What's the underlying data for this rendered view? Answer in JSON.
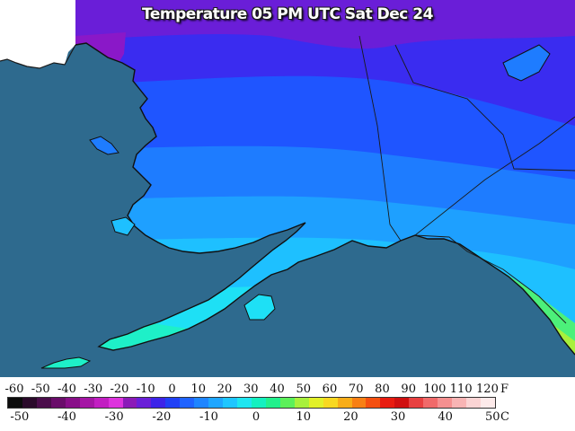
{
  "title": "Temperature 05 PM UTC Sat Dec 24",
  "legend": {
    "fahrenheit_unit": "F",
    "celsius_unit": "C",
    "fahrenheit_ticks": [
      "-60",
      "-50",
      "-40",
      "-30",
      "-20",
      "-10",
      "0",
      "10",
      "20",
      "30",
      "40",
      "50",
      "60",
      "70",
      "80",
      "90",
      "100",
      "110",
      "120"
    ],
    "celsius_ticks": [
      "-50",
      "-40",
      "-30",
      "-20",
      "-10",
      "0",
      "10",
      "20",
      "30",
      "40",
      "50"
    ],
    "colors": [
      "#0c0c0c",
      "#2a0a2a",
      "#4b0d4b",
      "#6a0d6a",
      "#880f88",
      "#a516a5",
      "#c21fc2",
      "#dd33dd",
      "#8b1ab8",
      "#6a1fd8",
      "#3d24e8",
      "#2040f5",
      "#1f63ff",
      "#1e85ff",
      "#1ea6ff",
      "#1ec6ff",
      "#1ee6f0",
      "#14f0c0",
      "#22f08c",
      "#5cf05a",
      "#a8f03c",
      "#e2f028",
      "#f8d820",
      "#f8ad18",
      "#f88014",
      "#f55010",
      "#e81c10",
      "#d01010",
      "#e84040",
      "#f06a6a",
      "#f59090",
      "#f8b4b4",
      "#fbd4d4",
      "#fdeaea"
    ],
    "color_key": {
      "F_-60": "#0c0c0c",
      "F_0": "#7a14c8",
      "F_10": "#3d24e8",
      "F_20": "#1f63ff",
      "F_30": "#1ea6ff",
      "F_40": "#1ee6f0",
      "F_50": "#22f08c",
      "F_60": "#a8f03c",
      "F_70": "#f8d820",
      "F_80": "#f88014",
      "F_90": "#e81c10",
      "F_100": "#e84040",
      "F_120": "#fdeaea"
    }
  },
  "map": {
    "region": "Alaska",
    "ocean_color": "#2e6a8e",
    "foreign_land_color": "#ffffff",
    "state_boundary_color": "#1a1a1a",
    "temperature_bands": [
      {
        "band": "0-10F north slope",
        "color": "#6a1ed8"
      },
      {
        "band": "10-20F interior north",
        "color": "#3a2cf0"
      },
      {
        "band": "20-25F interior",
        "color": "#1f55ff"
      },
      {
        "band": "25-30F interior south",
        "color": "#1e7cff"
      },
      {
        "band": "30-35F",
        "color": "#1ea0ff"
      },
      {
        "band": "35-40F",
        "color": "#1ec0ff"
      },
      {
        "band": "40-45F southwest",
        "color": "#1ee0f5"
      },
      {
        "band": "45-50F aleutians",
        "color": "#1ef0c8"
      },
      {
        "band": "50-55F southeast",
        "color": "#4cf07a"
      },
      {
        "band": "55-60F panhandle",
        "color": "#a8f03c"
      }
    ]
  }
}
